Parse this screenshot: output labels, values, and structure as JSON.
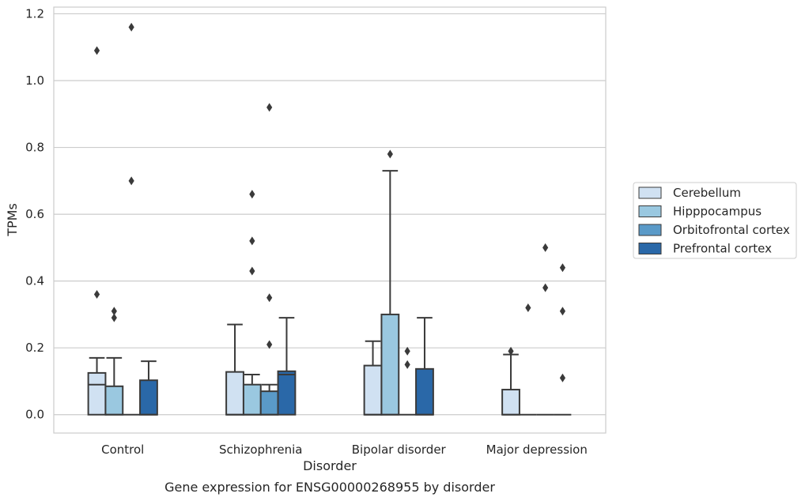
{
  "chart_data": {
    "type": "box",
    "title": "",
    "caption": "Gene expression for ENSG00000268955 by disorder",
    "xlabel": "Disorder",
    "ylabel": "TPMs",
    "ylim": [
      -0.055,
      1.22
    ],
    "yticks": [
      0.0,
      0.2,
      0.4,
      0.6,
      0.8,
      1.0,
      1.2
    ],
    "ytick_labels": [
      "0.0",
      "0.2",
      "0.4",
      "0.6",
      "0.8",
      "1.0",
      "1.2"
    ],
    "categories": [
      "Control",
      "Schizophrenia",
      "Bipolar disorder",
      "Major depression"
    ],
    "grid": "horizontal",
    "legend_position": "right",
    "series": [
      {
        "name": "Cerebellum",
        "color": "#d0e1f2",
        "boxes": [
          {
            "q1": 0.0,
            "median": 0.09,
            "q3": 0.125,
            "whisker_low": 0.0,
            "whisker_high": 0.17,
            "outliers": [
              0.36,
              1.09
            ]
          },
          {
            "q1": 0.0,
            "median": 0.0,
            "q3": 0.128,
            "whisker_low": 0.0,
            "whisker_high": 0.27,
            "outliers": []
          },
          {
            "q1": 0.0,
            "median": 0.0,
            "q3": 0.147,
            "whisker_low": 0.0,
            "whisker_high": 0.22,
            "outliers": []
          },
          {
            "q1": 0.0,
            "median": 0.0,
            "q3": 0.075,
            "whisker_low": 0.0,
            "whisker_high": 0.18,
            "outliers": [
              0.19
            ]
          }
        ]
      },
      {
        "name": "Hipppocampus",
        "color": "#9ac8e0",
        "boxes": [
          {
            "q1": 0.0,
            "median": 0.0,
            "q3": 0.085,
            "whisker_low": 0.0,
            "whisker_high": 0.17,
            "outliers": [
              0.29,
              0.31
            ]
          },
          {
            "q1": 0.0,
            "median": 0.0,
            "q3": 0.09,
            "whisker_low": 0.0,
            "whisker_high": 0.12,
            "outliers": [
              0.43,
              0.52,
              0.66
            ]
          },
          {
            "q1": 0.0,
            "median": 0.0,
            "q3": 0.3,
            "whisker_low": 0.0,
            "whisker_high": 0.73,
            "outliers": [
              0.78
            ]
          },
          {
            "q1": 0.0,
            "median": 0.0,
            "q3": 0.0,
            "whisker_low": 0.0,
            "whisker_high": 0.0,
            "outliers": [
              0.32
            ]
          }
        ]
      },
      {
        "name": "Orbitofrontal cortex",
        "color": "#5a9ac8",
        "boxes": [
          {
            "q1": 0.0,
            "median": 0.0,
            "q3": 0.0,
            "whisker_low": 0.0,
            "whisker_high": 0.0,
            "outliers": [
              0.7,
              1.16
            ]
          },
          {
            "q1": 0.0,
            "median": 0.0,
            "q3": 0.07,
            "whisker_low": 0.0,
            "whisker_high": 0.09,
            "outliers": [
              0.21,
              0.35,
              0.92
            ]
          },
          {
            "q1": 0.0,
            "median": 0.0,
            "q3": 0.0,
            "whisker_low": 0.0,
            "whisker_high": 0.0,
            "outliers": [
              0.15,
              0.19
            ]
          },
          {
            "q1": 0.0,
            "median": 0.0,
            "q3": 0.0,
            "whisker_low": 0.0,
            "whisker_high": 0.0,
            "outliers": [
              0.38,
              0.5
            ]
          }
        ]
      },
      {
        "name": "Prefrontal cortex",
        "color": "#2a68a8",
        "boxes": [
          {
            "q1": 0.0,
            "median": 0.0,
            "q3": 0.103,
            "whisker_low": 0.0,
            "whisker_high": 0.16,
            "outliers": []
          },
          {
            "q1": 0.0,
            "median": 0.12,
            "q3": 0.13,
            "whisker_low": 0.0,
            "whisker_high": 0.29,
            "outliers": []
          },
          {
            "q1": 0.0,
            "median": 0.0,
            "q3": 0.137,
            "whisker_low": 0.0,
            "whisker_high": 0.29,
            "outliers": []
          },
          {
            "q1": 0.0,
            "median": 0.0,
            "q3": 0.0,
            "whisker_low": 0.0,
            "whisker_high": 0.0,
            "outliers": [
              0.11,
              0.31,
              0.44
            ]
          }
        ]
      }
    ]
  }
}
